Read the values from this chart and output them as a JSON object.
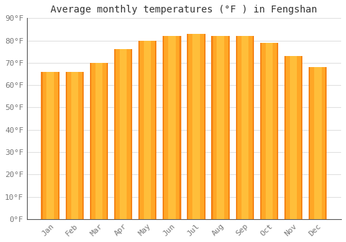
{
  "title": "Average monthly temperatures (°F ) in Fengshan",
  "months": [
    "Jan",
    "Feb",
    "Mar",
    "Apr",
    "May",
    "Jun",
    "Jul",
    "Aug",
    "Sep",
    "Oct",
    "Nov",
    "Dec"
  ],
  "values": [
    66,
    66,
    70,
    76,
    80,
    82,
    83,
    82,
    82,
    79,
    73,
    68
  ],
  "bar_color_main": "#FFA726",
  "bar_color_edge": "#E65100",
  "bar_color_light": "#FFD54F",
  "ylim": [
    0,
    90
  ],
  "yticks": [
    0,
    10,
    20,
    30,
    40,
    50,
    60,
    70,
    80,
    90
  ],
  "ytick_labels": [
    "0°F",
    "10°F",
    "20°F",
    "30°F",
    "40°F",
    "50°F",
    "60°F",
    "70°F",
    "80°F",
    "90°F"
  ],
  "background_color": "#ffffff",
  "grid_color": "#e0e0e0",
  "title_fontsize": 10,
  "tick_fontsize": 8,
  "tick_color": "#777777",
  "font_family": "monospace",
  "bar_width": 0.75
}
